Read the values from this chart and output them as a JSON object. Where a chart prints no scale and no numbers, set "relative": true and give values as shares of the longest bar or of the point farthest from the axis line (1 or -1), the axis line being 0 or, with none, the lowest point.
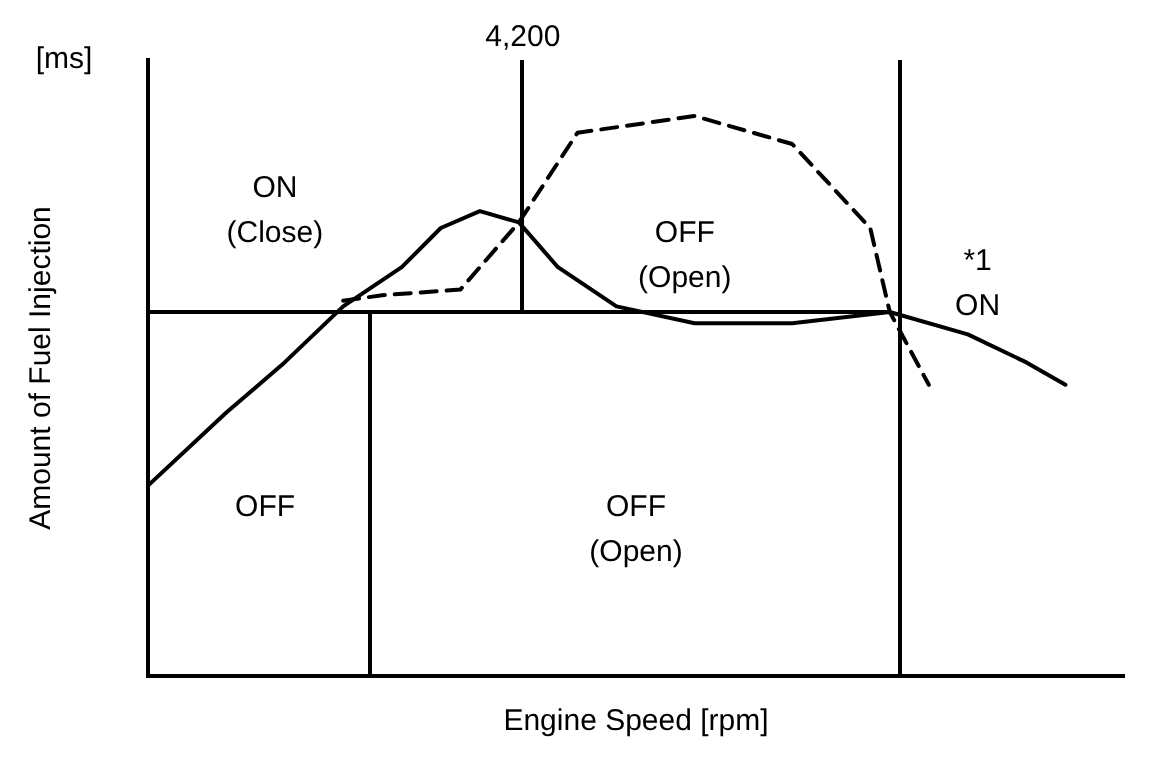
{
  "chart_data": {
    "type": "line",
    "relative": true,
    "xlabel": "Engine Speed [rpm]",
    "ylabel": "Amount of Fuel Injection",
    "grid": false,
    "legend": false,
    "marker": "none",
    "categories": [
      null,
      null,
      null,
      null,
      null,
      null,
      null,
      null,
      null,
      null,
      null,
      null,
      null,
      null,
      null,
      null,
      null,
      null,
      null,
      null,
      null,
      null,
      null,
      null,
      null,
      null,
      null,
      null,
      null,
      null,
      null,
      null,
      null,
      null,
      null,
      null,
      null,
      null,
      null,
      null,
      null,
      null,
      null,
      null,
      null,
      null,
      null,
      null,
      null,
      null,
      null
    ],
    "series": [
      {
        "color": "#000000",
        "line_style": "solid",
        "values": [
          0.34,
          null,
          null,
          null,
          0.47,
          null,
          null,
          0.56,
          null,
          null,
          0.66,
          null,
          null,
          0.73,
          null,
          0.8,
          null,
          0.83,
          null,
          0.81,
          null,
          0.73,
          null,
          null,
          0.66,
          null,
          null,
          null,
          0.63,
          null,
          null,
          null,
          null,
          0.63,
          null,
          null,
          null,
          null,
          0.65,
          null,
          null,
          null,
          0.61,
          null,
          null,
          0.56,
          null,
          0.52,
          null,
          null,
          null
        ]
      },
      {
        "color": "#000000",
        "line_style": "dashed",
        "values": [
          null,
          null,
          null,
          null,
          null,
          null,
          null,
          null,
          null,
          null,
          0.67,
          null,
          0.68,
          null,
          null,
          null,
          0.69,
          null,
          null,
          0.81,
          null,
          null,
          0.97,
          null,
          null,
          null,
          null,
          null,
          1.0,
          null,
          null,
          null,
          null,
          0.95,
          null,
          null,
          null,
          0.8,
          0.65,
          null,
          0.52,
          null,
          null,
          null,
          null,
          null,
          null,
          null,
          null,
          null,
          null
        ]
      },
      {
        "color": "#000000",
        "line_style": "solid",
        "values": [
          0.65,
          null,
          null,
          null,
          null,
          null,
          null,
          null,
          null,
          null,
          null,
          null,
          null,
          null,
          null,
          null,
          null,
          null,
          null,
          null,
          null,
          null,
          null,
          null,
          null,
          null,
          null,
          null,
          null,
          null,
          null,
          null,
          null,
          null,
          null,
          null,
          null,
          null,
          0.65,
          null,
          null,
          null,
          null,
          null,
          null,
          null,
          null,
          null,
          null,
          null,
          null
        ]
      }
    ],
    "annotations": [
      "[ms]",
      "4,200",
      "ON",
      "(Close)",
      "OFF",
      "(Open)",
      "*1",
      "ON",
      "OFF",
      "OFF",
      "(Open)"
    ]
  }
}
